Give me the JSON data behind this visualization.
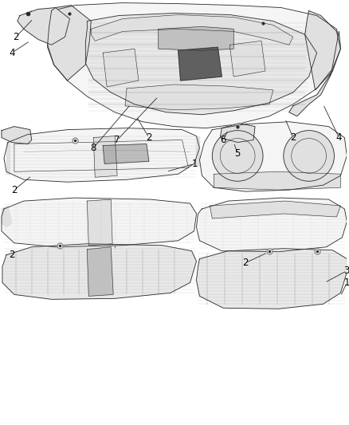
{
  "background_color": "#ffffff",
  "line_color": "#2a2a2a",
  "label_color": "#000000",
  "fig_width": 4.38,
  "fig_height": 5.33,
  "dpi": 100,
  "fill_light": "#f5f5f5",
  "fill_mid": "#e0e0e0",
  "fill_dark": "#c0c0c0",
  "fill_darker": "#a0a0a0",
  "hatch_color": "#cccccc"
}
